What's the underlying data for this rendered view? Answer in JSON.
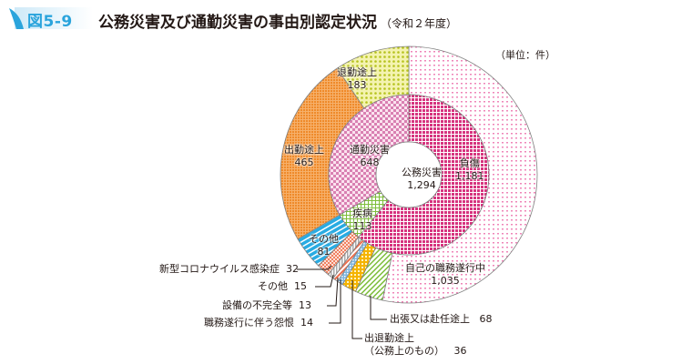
{
  "header": {
    "figure_label": "図5-9",
    "title": "公務災害及び通勤災害の事由別認定状況",
    "subtitle": "（令和２年度）",
    "unit": "（単位：件）"
  },
  "chart_data": {
    "type": "pie",
    "subtype": "nested-donut",
    "title": "公務災害及び通勤災害の事由別認定状況（令和２年度）",
    "unit": "件",
    "inner_ring": [
      {
        "label": "公務災害",
        "value": 1294,
        "display": "1,294",
        "color": "#d6337e"
      },
      {
        "label": "通勤災害",
        "value": 648,
        "display": "648",
        "color": "#e59bc4"
      }
    ],
    "middle_ring": [
      {
        "label": "負傷",
        "value": 1181,
        "display": "1,181",
        "parent": "公務災害",
        "color": "#d6337e"
      },
      {
        "label": "疾病",
        "value": 113,
        "display": "113",
        "parent": "公務災害",
        "color": "#8cc63f"
      },
      {
        "label": "通勤災害",
        "value": 648,
        "display": "648",
        "parent": "通勤災害",
        "color": "#e59bc4"
      }
    ],
    "outer_ring": [
      {
        "label": "自己の職務遂行中",
        "value": 1035,
        "display": "1,035",
        "color": "#f29ac2"
      },
      {
        "label": "出張又は赴任途上",
        "value": 68,
        "display": "68",
        "color": "#8cc63f"
      },
      {
        "label": "出退勤途上（公務上のもの）",
        "value": 36,
        "display": "36",
        "color": "#f5b400"
      },
      {
        "label": "職務遂行に伴う怨恨",
        "value": 14,
        "display": "14",
        "color": "#5b9bd5"
      },
      {
        "label": "設備の不完全等",
        "value": 13,
        "display": "13",
        "color": "#e8684a"
      },
      {
        "label": "その他",
        "value": 15,
        "display": "15",
        "color": "#a0a0a0"
      },
      {
        "label": "新型コロナウイルス感染症",
        "value": 32,
        "display": "32",
        "color": "#f08060"
      },
      {
        "label": "その他",
        "value": 81,
        "display": "81",
        "color": "#29abe2"
      },
      {
        "label": "出勤途上",
        "value": 465,
        "display": "465",
        "color": "#f39a3c"
      },
      {
        "label": "退勤途上",
        "value": 183,
        "display": "183",
        "color": "#d7e04a"
      }
    ],
    "center_label": "公務災害 1,294"
  },
  "labels": {
    "center": {
      "name": "公務災害",
      "value": "1,294"
    },
    "injury": {
      "name": "負傷",
      "value": "1,181"
    },
    "commute": {
      "name": "通勤災害",
      "value": "648"
    },
    "illness": {
      "name": "疾病",
      "value": "113"
    },
    "duty": {
      "name": "自己の職務遂行中",
      "value": "1,035"
    },
    "trip": {
      "name": "出張又は赴任途上",
      "value": "68"
    },
    "commute_duty": {
      "name": "出退勤途上",
      "name2": "（公務上のもの）",
      "value": "36"
    },
    "grudge": {
      "name": "職務遂行に伴う怨恨",
      "value": "14"
    },
    "facility": {
      "name": "設備の不完全等",
      "value": "13"
    },
    "other_small": {
      "name": "その他",
      "value": "15"
    },
    "covid": {
      "name": "新型コロナウイルス感染症",
      "value": "32"
    },
    "other": {
      "name": "その他",
      "value": "81"
    },
    "to_work": {
      "name": "出勤途上",
      "value": "465"
    },
    "from_work": {
      "name": "退勤途上",
      "value": "183"
    }
  }
}
